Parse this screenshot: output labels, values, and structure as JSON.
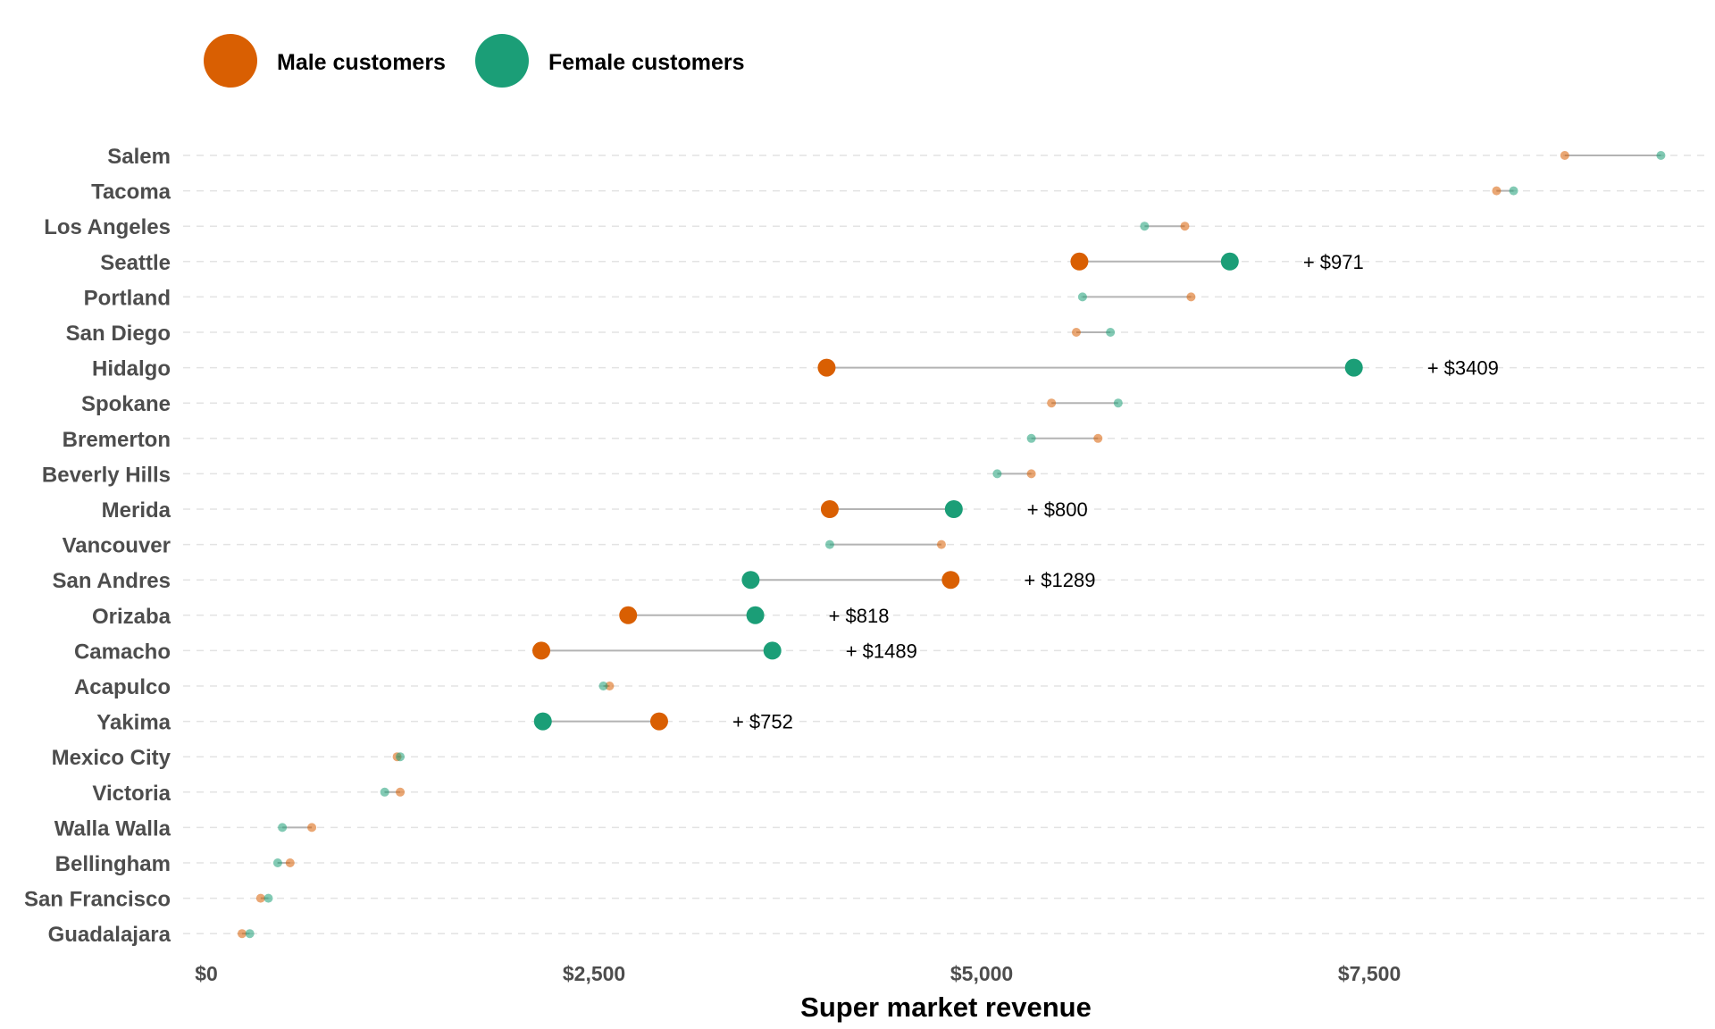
{
  "chart_data": {
    "type": "dumbbell",
    "xlabel": "Super market revenue",
    "xlim": [
      -150,
      9700
    ],
    "xticks": [
      {
        "value": 0,
        "label": "$0"
      },
      {
        "value": 2500,
        "label": "$2,500"
      },
      {
        "value": 5000,
        "label": "$5,000"
      },
      {
        "value": 7500,
        "label": "$7,500"
      }
    ],
    "grid": true,
    "legend_placement": "top-left",
    "colors": {
      "male": "#d95f02",
      "female": "#1b9e77"
    },
    "series": [
      {
        "key": "male",
        "name": "Male customers"
      },
      {
        "key": "female",
        "name": "Female customers"
      }
    ],
    "categories": [
      {
        "city": "Salem",
        "male": 8760,
        "female": 9380,
        "highlight": false,
        "diff_label": ""
      },
      {
        "city": "Tacoma",
        "male": 8320,
        "female": 8430,
        "highlight": false,
        "diff_label": ""
      },
      {
        "city": "Los Angeles",
        "male": 6310,
        "female": 6050,
        "highlight": false,
        "diff_label": ""
      },
      {
        "city": "Seattle",
        "male": 5630,
        "female": 6600,
        "highlight": true,
        "diff_label": "+ $971"
      },
      {
        "city": "Portland",
        "male": 6350,
        "female": 5650,
        "highlight": false,
        "diff_label": ""
      },
      {
        "city": "San Diego",
        "male": 5610,
        "female": 5830,
        "highlight": false,
        "diff_label": ""
      },
      {
        "city": "Hidalgo",
        "male": 4000,
        "female": 7400,
        "highlight": true,
        "diff_label": "+ $3409"
      },
      {
        "city": "Spokane",
        "male": 5450,
        "female": 5880,
        "highlight": false,
        "diff_label": ""
      },
      {
        "city": "Bremerton",
        "male": 5750,
        "female": 5320,
        "highlight": false,
        "diff_label": ""
      },
      {
        "city": "Beverly Hills",
        "male": 5320,
        "female": 5100,
        "highlight": false,
        "diff_label": ""
      },
      {
        "city": "Merida",
        "male": 4020,
        "female": 4820,
        "highlight": true,
        "diff_label": "+ $800"
      },
      {
        "city": "Vancouver",
        "male": 4740,
        "female": 4020,
        "highlight": false,
        "diff_label": ""
      },
      {
        "city": "San Andres",
        "male": 4800,
        "female": 3510,
        "highlight": true,
        "diff_label": "+ $1289"
      },
      {
        "city": "Orizaba",
        "male": 2720,
        "female": 3540,
        "highlight": true,
        "diff_label": "+ $818"
      },
      {
        "city": "Camacho",
        "male": 2160,
        "female": 3650,
        "highlight": true,
        "diff_label": "+ $1489"
      },
      {
        "city": "Acapulco",
        "male": 2600,
        "female": 2560,
        "highlight": false,
        "diff_label": ""
      },
      {
        "city": "Yakima",
        "male": 2920,
        "female": 2170,
        "highlight": true,
        "diff_label": "+ $752"
      },
      {
        "city": "Mexico City",
        "male": 1230,
        "female": 1250,
        "highlight": false,
        "diff_label": ""
      },
      {
        "city": "Victoria",
        "male": 1250,
        "female": 1150,
        "highlight": false,
        "diff_label": ""
      },
      {
        "city": "Walla Walla",
        "male": 680,
        "female": 490,
        "highlight": false,
        "diff_label": ""
      },
      {
        "city": "Bellingham",
        "male": 540,
        "female": 460,
        "highlight": false,
        "diff_label": ""
      },
      {
        "city": "San Francisco",
        "male": 350,
        "female": 400,
        "highlight": false,
        "diff_label": ""
      },
      {
        "city": "Guadalajara",
        "male": 230,
        "female": 280,
        "highlight": false,
        "diff_label": ""
      }
    ]
  }
}
